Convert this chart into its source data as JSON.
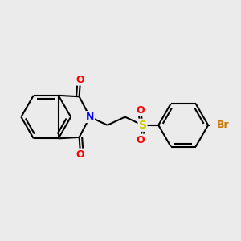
{
  "background_color": "#EBEBEB",
  "bond_color": "#000000",
  "bond_lw": 1.5,
  "atom_colors": {
    "N": "#0000FF",
    "O": "#FF0000",
    "S": "#CCCC00",
    "Br": "#CC7700",
    "C": "#000000"
  },
  "figsize": [
    3.0,
    3.0
  ],
  "dpi": 100,
  "xlim": [
    0,
    10
  ],
  "ylim": [
    0,
    10
  ]
}
